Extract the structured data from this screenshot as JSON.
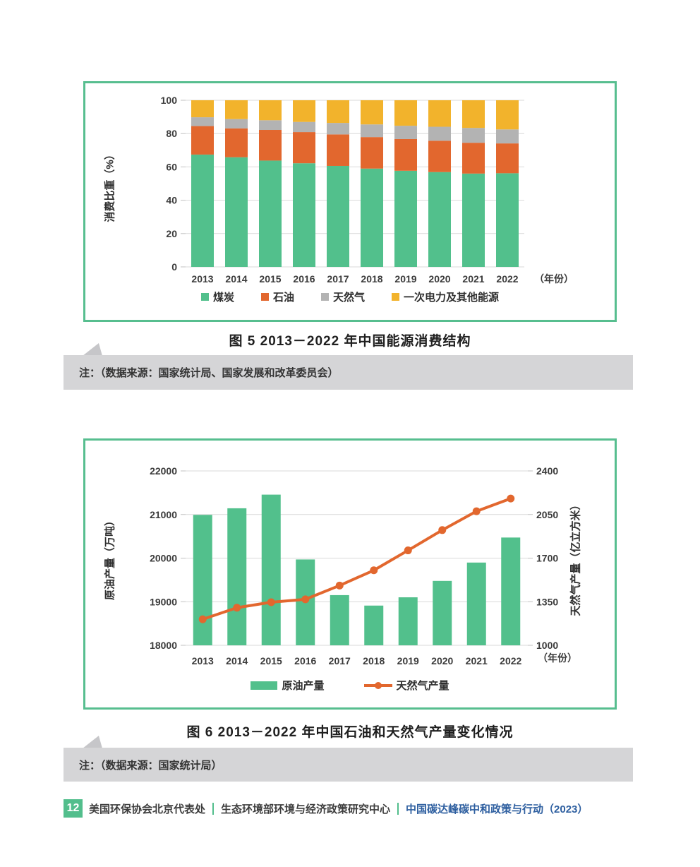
{
  "colors": {
    "accent_green": "#52c08c",
    "card_border_green": "#57be8f",
    "series_orange": "#e2672e",
    "series_gray": "#b3b3b3",
    "series_yellow": "#f2b32c",
    "note_band_gray": "#d5d5d7",
    "footer_blue": "#2e5fa0",
    "grid_gray": "#d9d9d9"
  },
  "chart_data": [
    {
      "type": "bar",
      "stacked": true,
      "title": "图 5  2013－2022 年中国能源消费结构",
      "categories": [
        "2013",
        "2014",
        "2015",
        "2016",
        "2017",
        "2018",
        "2019",
        "2020",
        "2021",
        "2022"
      ],
      "series": [
        {
          "name": "煤炭",
          "color": "#52c08c",
          "values": [
            67.4,
            65.8,
            63.8,
            62.2,
            60.6,
            59.0,
            57.7,
            56.9,
            56.0,
            56.2
          ]
        },
        {
          "name": "石油",
          "color": "#e2672e",
          "values": [
            17.1,
            17.3,
            18.4,
            18.7,
            18.9,
            18.9,
            19.0,
            18.8,
            18.5,
            17.9
          ]
        },
        {
          "name": "天然气",
          "color": "#b3b3b3",
          "values": [
            5.3,
            5.6,
            5.8,
            6.1,
            6.9,
            7.6,
            8.0,
            8.4,
            8.9,
            8.4
          ]
        },
        {
          "name": "一次电力及其他能源",
          "color": "#f2b32c",
          "values": [
            10.2,
            11.3,
            12.0,
            13.0,
            13.6,
            14.5,
            15.3,
            15.9,
            16.6,
            17.5
          ]
        }
      ],
      "ylabel": "消费比重（%）",
      "xunit": "（年份）",
      "ylim": [
        0,
        100
      ],
      "yticks": [
        0,
        20,
        40,
        60,
        80,
        100
      ],
      "grid": true,
      "legend_position": "bottom"
    },
    {
      "type": "combo",
      "title": "图 6  2013－2022 年中国石油和天然气产量变化情况",
      "categories": [
        "2013",
        "2014",
        "2015",
        "2016",
        "2017",
        "2018",
        "2019",
        "2020",
        "2021",
        "2022"
      ],
      "bar_series": {
        "name": "原油产量",
        "color": "#52c08c",
        "axis": "left",
        "values": [
          20992,
          21143,
          21456,
          19969,
          19151,
          18911,
          19101,
          19477,
          19898,
          20472
        ]
      },
      "line_series": {
        "name": "天然气产量",
        "color": "#e2672e",
        "axis": "right",
        "values": [
          1209,
          1302,
          1346,
          1369,
          1480,
          1602,
          1762,
          1925,
          2076,
          2178
        ]
      },
      "left_axis": {
        "label": "原油产量（万吨）",
        "min": 18000,
        "max": 22000,
        "ticks": [
          18000,
          19000,
          20000,
          21000,
          22000
        ]
      },
      "right_axis": {
        "label": "天然气产量（亿立方米）",
        "min": 1000,
        "max": 2400,
        "ticks": [
          1000,
          1350,
          1700,
          2050,
          2400
        ]
      },
      "xunit": "（年份）",
      "grid": true,
      "legend_position": "bottom"
    }
  ],
  "captions": {
    "fig5": "图 5  2013－2022 年中国能源消费结构",
    "fig6": "图 6  2013－2022 年中国石油和天然气产量变化情况"
  },
  "notes": {
    "fig5": "注：（数据来源：国家统计局、国家发展和改革委员会）",
    "fig6": "注：（数据来源：国家统计局）"
  },
  "footer": {
    "page_number": "12",
    "org1": "美国环保协会北京代表处",
    "org2": "生态环境部环境与经济政策研究中心",
    "report": "中国碳达峰碳中和政策与行动（2023）"
  }
}
